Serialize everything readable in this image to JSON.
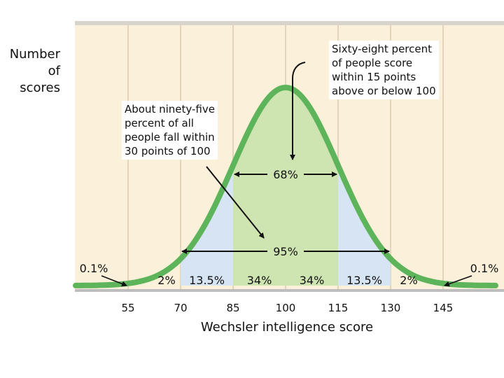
{
  "chart_data": {
    "type": "area",
    "title": "",
    "xlabel": "Wechsler intelligence score",
    "ylabel": "Number of\nscores",
    "x_ticks": [
      55,
      70,
      85,
      100,
      115,
      130,
      145
    ],
    "xlim": [
      40,
      160
    ],
    "distribution": {
      "mean": 100,
      "sd": 15
    },
    "bands": [
      {
        "from": 40,
        "to": 55,
        "label": "0.1%"
      },
      {
        "from": 55,
        "to": 70,
        "label": "2%"
      },
      {
        "from": 70,
        "to": 85,
        "label": "13.5%"
      },
      {
        "from": 85,
        "to": 100,
        "label": "34%"
      },
      {
        "from": 100,
        "to": 115,
        "label": "34%"
      },
      {
        "from": 115,
        "to": 130,
        "label": "13.5%"
      },
      {
        "from": 130,
        "to": 145,
        "label": "2%"
      },
      {
        "from": 145,
        "to": 160,
        "label": "0.1%"
      }
    ],
    "ranges": [
      {
        "from": 85,
        "to": 115,
        "label": "68%"
      },
      {
        "from": 70,
        "to": 130,
        "label": "95%"
      }
    ],
    "annotations": [
      "About ninety-five\npercent of all\npeople fall within\n30 points of 100",
      "Sixty-eight percent\nof people score\nwithin 15 points\nabove or below 100"
    ],
    "colors": {
      "background": "#fbf0da",
      "grid": "#e2d5ba",
      "inner_band": "#cfe5b1",
      "outer_band": "#d6e4f3",
      "curve": "#5db45a",
      "arrow": "#111111"
    }
  }
}
